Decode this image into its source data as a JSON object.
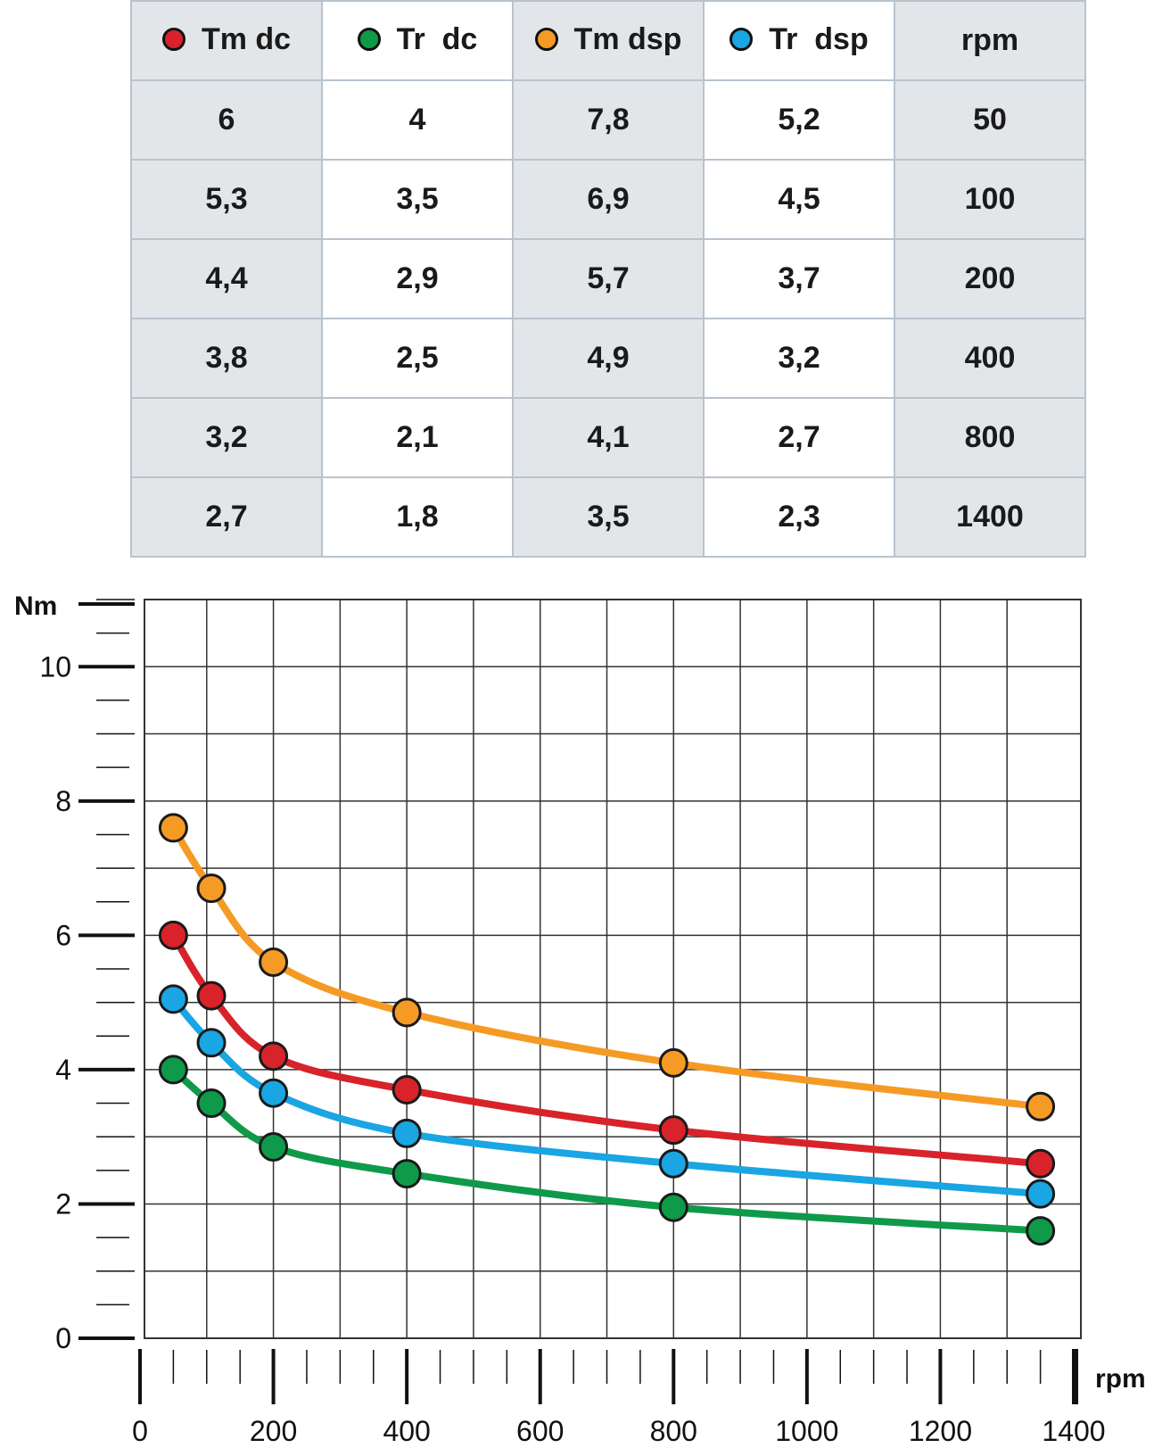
{
  "table": {
    "columns": [
      {
        "label": "Tm dc",
        "color": "#d8232a"
      },
      {
        "label": "Tr  dc",
        "color": "#0f9a4a"
      },
      {
        "label": "Tm dsp",
        "color": "#f59b25"
      },
      {
        "label": "Tr  dsp",
        "color": "#1aa5e3"
      },
      {
        "label": "rpm",
        "color": ""
      }
    ],
    "rows": [
      [
        "6",
        "4",
        "7,8",
        "5,2",
        "50"
      ],
      [
        "5,3",
        "3,5",
        "6,9",
        "4,5",
        "100"
      ],
      [
        "4,4",
        "2,9",
        "5,7",
        "3,7",
        "200"
      ],
      [
        "3,8",
        "2,5",
        "4,9",
        "3,2",
        "400"
      ],
      [
        "3,2",
        "2,1",
        "4,1",
        "2,7",
        "800"
      ],
      [
        "2,7",
        "1,8",
        "3,5",
        "2,3",
        "1400"
      ]
    ]
  },
  "chart_data": {
    "type": "line",
    "title": "",
    "xlabel": "rpm",
    "ylabel": "Nm",
    "xlim": [
      0,
      1400
    ],
    "ylim": [
      0,
      11
    ],
    "grid": true,
    "x_tick_labels": [
      "0",
      "200",
      "400",
      "600",
      "800",
      "1000",
      "1200",
      "1400"
    ],
    "y_tick_labels": [
      "0",
      "2",
      "4",
      "6",
      "8",
      "10"
    ],
    "x": [
      50,
      100,
      200,
      400,
      800,
      1400
    ],
    "series": [
      {
        "name": "Tm dsp",
        "color": "#f59b25",
        "points": [
          [
            50,
            7.6
          ],
          [
            107,
            6.7
          ],
          [
            200,
            5.6
          ],
          [
            400,
            4.85
          ],
          [
            800,
            4.1
          ],
          [
            1350,
            3.45
          ]
        ]
      },
      {
        "name": "Tm dc",
        "color": "#d8232a",
        "points": [
          [
            50,
            6.0
          ],
          [
            107,
            5.1
          ],
          [
            200,
            4.2
          ],
          [
            400,
            3.7
          ],
          [
            800,
            3.1
          ],
          [
            1350,
            2.6
          ]
        ]
      },
      {
        "name": "Tr  dsp",
        "color": "#1aa5e3",
        "points": [
          [
            50,
            5.05
          ],
          [
            107,
            4.4
          ],
          [
            200,
            3.65
          ],
          [
            400,
            3.05
          ],
          [
            800,
            2.6
          ],
          [
            1350,
            2.15
          ]
        ]
      },
      {
        "name": "Tr  dc",
        "color": "#0f9a4a",
        "points": [
          [
            50,
            4.0
          ],
          [
            107,
            3.5
          ],
          [
            200,
            2.85
          ],
          [
            400,
            2.45
          ],
          [
            800,
            1.95
          ],
          [
            1350,
            1.6
          ]
        ]
      }
    ]
  }
}
